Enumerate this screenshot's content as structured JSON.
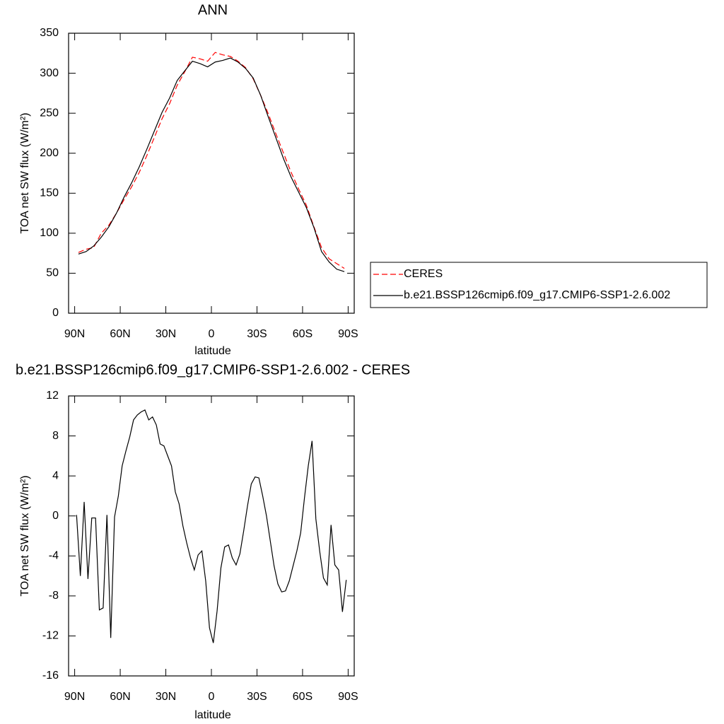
{
  "chart_data": [
    {
      "type": "line",
      "title": "ANN",
      "xlabel": "latitude",
      "ylabel": "TOA net SW flux (W/m²)",
      "x": [
        87.5,
        82.5,
        77.5,
        72.5,
        67.5,
        62.5,
        57.5,
        52.5,
        47.5,
        42.5,
        37.5,
        32.5,
        27.5,
        22.5,
        17.5,
        12.5,
        7.5,
        2.5,
        -2.5,
        -7.5,
        -12.5,
        -17.5,
        -22.5,
        -27.5,
        -32.5,
        -37.5,
        -42.5,
        -47.5,
        -52.5,
        -57.5,
        -62.5,
        -67.5,
        -72.5,
        -77.5,
        -82.5,
        -87.5
      ],
      "series": [
        {
          "name": "CERES",
          "color": "#ff0000",
          "line_style": "dashed",
          "values": [
            76,
            80,
            82,
            100,
            110,
            125,
            142,
            158,
            176,
            197,
            220,
            243,
            262,
            285,
            302,
            320,
            318,
            315,
            326,
            323,
            321,
            315,
            307,
            293,
            272,
            249,
            224,
            200,
            176,
            155,
            135,
            108,
            82,
            68,
            62,
            56
          ]
        },
        {
          "name": "b.e21.BSSP126cmip6.f09_g17.CMIP6-SSP1-2.6.002",
          "color": "#000000",
          "line_style": "solid",
          "values": [
            74,
            77,
            84,
            95,
            108,
            125,
            145,
            163,
            183,
            205,
            228,
            251,
            269,
            291,
            303,
            315,
            312,
            308,
            314,
            316,
            319,
            314,
            306,
            294,
            272,
            245,
            219,
            193,
            170,
            151,
            132,
            107,
            77,
            64,
            55,
            52
          ]
        }
      ],
      "xlim": [
        94,
        -94
      ],
      "xticks": [
        {
          "value": 90,
          "label": "90N"
        },
        {
          "value": 60,
          "label": "60N"
        },
        {
          "value": 30,
          "label": "30N"
        },
        0,
        {
          "value": -30,
          "label": "30S"
        },
        {
          "value": -60,
          "label": "60S"
        },
        {
          "value": -90,
          "label": "90S"
        }
      ],
      "ylim": [
        0,
        350
      ],
      "yticks": [
        0,
        50,
        100,
        150,
        200,
        250,
        300,
        350
      ],
      "legend": "outside-right"
    },
    {
      "type": "line",
      "title": "b.e21.BSSP126cmip6.f09_g17.CMIP6-SSP1-2.6.002 - CERES",
      "xlabel": "latitude",
      "ylabel": "TOA net SW flux (W/m²)",
      "x": [
        88.75,
        86.25,
        83.75,
        81.25,
        78.75,
        76.25,
        73.75,
        71.25,
        68.75,
        66.25,
        63.75,
        61.25,
        58.75,
        56.25,
        53.75,
        51.25,
        48.75,
        46.25,
        43.75,
        41.25,
        38.75,
        36.25,
        33.75,
        31.25,
        28.75,
        26.25,
        23.75,
        21.25,
        18.75,
        16.25,
        13.75,
        11.25,
        8.75,
        6.25,
        3.75,
        1.25,
        -1.25,
        -3.75,
        -6.25,
        -8.75,
        -11.25,
        -13.75,
        -16.25,
        -18.75,
        -21.25,
        -23.75,
        -26.25,
        -28.75,
        -31.25,
        -33.75,
        -36.25,
        -38.75,
        -41.25,
        -43.75,
        -46.25,
        -48.75,
        -51.25,
        -53.75,
        -56.25,
        -58.75,
        -61.25,
        -63.75,
        -66.25,
        -68.75,
        -71.25,
        -73.75,
        -76.25,
        -78.75,
        -81.25,
        -83.75,
        -86.25,
        -88.75
      ],
      "series": [
        {
          "color": "#000000",
          "line_style": "solid",
          "values": [
            0.1,
            -6.0,
            1.4,
            -6.3,
            -0.2,
            -0.2,
            -9.4,
            -9.2,
            0.1,
            -12.2,
            -0.1,
            2.0,
            5.0,
            6.5,
            7.9,
            9.6,
            10.1,
            10.4,
            10.6,
            9.6,
            9.9,
            9.1,
            7.2,
            7.0,
            6.0,
            5.0,
            2.4,
            1.2,
            -1.0,
            -2.7,
            -4.2,
            -5.4,
            -3.9,
            -3.5,
            -6.5,
            -11.2,
            -12.7,
            -9.5,
            -5.2,
            -3.1,
            -2.9,
            -4.2,
            -4.9,
            -3.8,
            -1.5,
            1.0,
            3.2,
            3.9,
            3.8,
            2.0,
            0.0,
            -2.5,
            -5.0,
            -6.8,
            -7.6,
            -7.5,
            -6.5,
            -5.0,
            -3.5,
            -1.7,
            1.8,
            5.0,
            7.5,
            -0.3,
            -3.5,
            -6.2,
            -6.9,
            -0.9,
            -4.9,
            -5.4,
            -9.6,
            -6.4
          ]
        }
      ],
      "xlim": [
        94,
        -94
      ],
      "xticks": [
        {
          "value": 90,
          "label": "90N"
        },
        {
          "value": 60,
          "label": "60N"
        },
        {
          "value": 30,
          "label": "30N"
        },
        0,
        {
          "value": -30,
          "label": "30S"
        },
        {
          "value": -60,
          "label": "60S"
        },
        {
          "value": -90,
          "label": "90S"
        }
      ],
      "ylim": [
        -16,
        12
      ],
      "yticks": [
        -16,
        -12,
        -8,
        -4,
        0,
        4,
        8,
        12
      ]
    }
  ]
}
